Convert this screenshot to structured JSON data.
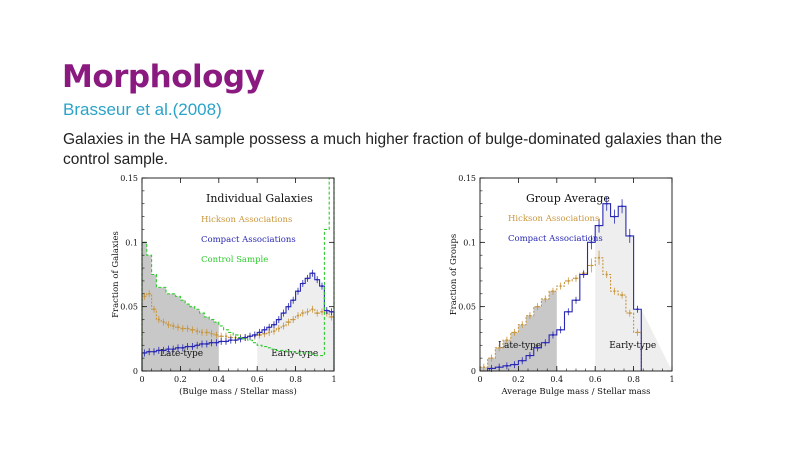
{
  "slide": {
    "title": "Morphology",
    "subtitle": "Brasseur et al.(2008)",
    "body": "Galaxies in the HA sample possess a much higher fraction of bulge-dominated galaxies than the control sample."
  },
  "colors": {
    "title": "#8b1a80",
    "subtitle": "#2aa3c8",
    "hickson": "#c8963c",
    "compact": "#2828b4",
    "control": "#2ecc2e",
    "shade_dark": "#c8c8c8",
    "shade_light": "#eeeeee"
  },
  "chart_data": [
    {
      "type": "histogram",
      "title": "Individual Galaxies",
      "xlabel": "(Bulge mass / Stellar mass)",
      "ylabel": "Fraction of Galaxies",
      "xlim": [
        0,
        1
      ],
      "ylim": [
        0,
        0.15
      ],
      "x_ticks": [
        "0",
        "0.2",
        "0.4",
        "0.6",
        "0.8",
        "1"
      ],
      "y_ticks": [
        "0",
        "0.05",
        "0.1",
        "0.15"
      ],
      "bin_width": 0.025,
      "regions": [
        {
          "label": "Late-type",
          "x_range": [
            0,
            0.4
          ],
          "shade": "dark"
        },
        {
          "label": "Early-type",
          "x_range": [
            0.6,
            1.0
          ],
          "shade": "light"
        }
      ],
      "legend": [
        "Hickson Associations",
        "Compact Associations",
        "Control Sample"
      ],
      "series": [
        {
          "name": "Hickson Associations",
          "color": "#c8963c",
          "errorbars": true,
          "values": [
            0.058,
            0.06,
            0.048,
            0.04,
            0.038,
            0.036,
            0.035,
            0.034,
            0.033,
            0.033,
            0.032,
            0.031,
            0.03,
            0.03,
            0.029,
            0.028,
            0.027,
            0.027,
            0.026,
            0.026,
            0.026,
            0.026,
            0.027,
            0.027,
            0.028,
            0.029,
            0.03,
            0.031,
            0.033,
            0.035,
            0.038,
            0.04,
            0.043,
            0.045,
            0.046,
            0.048,
            0.045,
            0.046,
            0.045,
            0.042
          ]
        },
        {
          "name": "Compact Associations",
          "color": "#2828b4",
          "errorbars": true,
          "values": [
            0.014,
            0.015,
            0.015,
            0.016,
            0.016,
            0.017,
            0.017,
            0.018,
            0.018,
            0.019,
            0.019,
            0.02,
            0.021,
            0.021,
            0.022,
            0.022,
            0.023,
            0.023,
            0.024,
            0.024,
            0.025,
            0.026,
            0.027,
            0.028,
            0.03,
            0.032,
            0.034,
            0.036,
            0.04,
            0.045,
            0.05,
            0.055,
            0.062,
            0.068,
            0.072,
            0.076,
            0.071,
            0.066,
            0.047,
            0.046
          ]
        },
        {
          "name": "Control Sample",
          "color": "#2ecc2e",
          "errorbars": false,
          "values": [
            0.1,
            0.09,
            0.075,
            0.065,
            0.065,
            0.06,
            0.06,
            0.058,
            0.055,
            0.052,
            0.05,
            0.048,
            0.045,
            0.042,
            0.04,
            0.038,
            0.035,
            0.032,
            0.03,
            0.028,
            0.026,
            0.025,
            0.024,
            0.022,
            0.02,
            0.019,
            0.018,
            0.017,
            0.016,
            0.016,
            0.015,
            0.015,
            0.014,
            0.014,
            0.014,
            0.013,
            0.012,
            0.012,
            0.11,
            0.15
          ]
        }
      ]
    },
    {
      "type": "histogram",
      "title": "Group Average",
      "xlabel": "Average Bulge mass / Stellar mass",
      "ylabel": "Fraction of Groups",
      "xlim": [
        0,
        1
      ],
      "ylim": [
        0,
        0.15
      ],
      "x_ticks": [
        "0",
        "0.2",
        "0.4",
        "0.6",
        "0.8",
        "1"
      ],
      "y_ticks": [
        "0",
        "0.05",
        "0.1",
        "0.15"
      ],
      "bin_width": 0.04,
      "regions": [
        {
          "label": "Late-type",
          "x_range": [
            0,
            0.4
          ],
          "shade": "dark"
        },
        {
          "label": "Early-type",
          "x_range": [
            0.6,
            1.0
          ],
          "shade": "light"
        }
      ],
      "legend": [
        "Hickson Associations",
        "Compact Associations"
      ],
      "series": [
        {
          "name": "Hickson Associations",
          "color": "#c8963c",
          "errorbars": true,
          "values": [
            0.003,
            0.01,
            0.018,
            0.024,
            0.03,
            0.036,
            0.043,
            0.05,
            0.056,
            0.062,
            0.066,
            0.07,
            0.072,
            0.076,
            0.082,
            0.088,
            0.075,
            0.062,
            0.059,
            0.045,
            0.03
          ]
        },
        {
          "name": "Compact Associations",
          "color": "#2828b4",
          "errorbars": true,
          "values": [
            0.0,
            0.002,
            0.003,
            0.004,
            0.005,
            0.008,
            0.012,
            0.018,
            0.022,
            0.028,
            0.032,
            0.046,
            0.055,
            0.075,
            0.1,
            0.113,
            0.13,
            0.12,
            0.128,
            0.105,
            0.048
          ]
        }
      ]
    }
  ]
}
